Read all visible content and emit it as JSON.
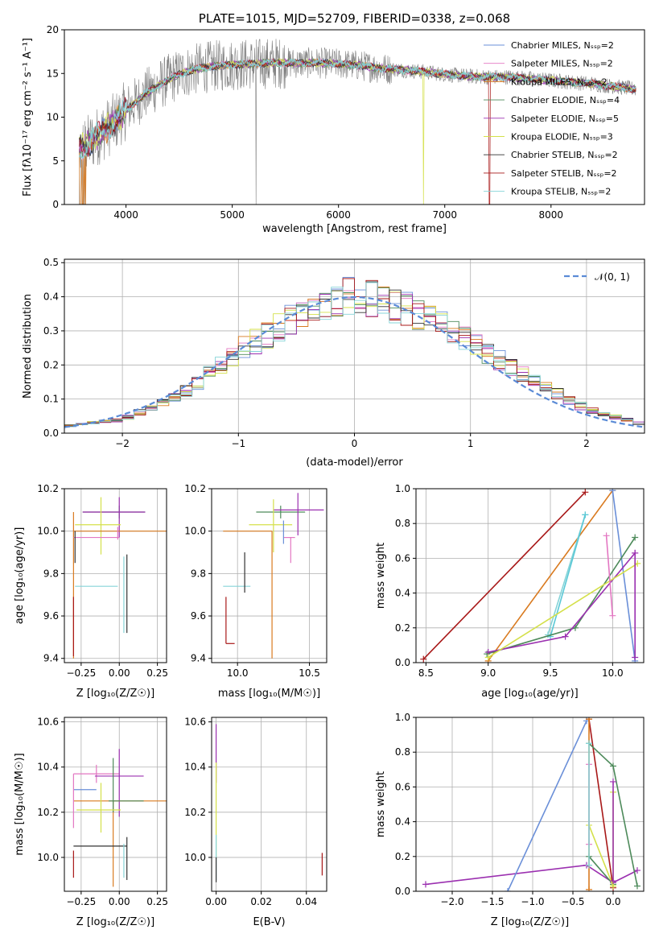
{
  "chart_data": [
    {
      "id": "spectrum",
      "type": "line",
      "title": "PLATE=1015, MJD=52709, FIBERID=0338, z=0.068",
      "xlabel": "wavelength [Angstrom, rest frame]",
      "ylabel": "Flux [fλ10⁻¹⁷ erg cm⁻² s⁻¹ A⁻¹]",
      "xlim": [
        3420,
        8880
      ],
      "ylim": [
        0,
        20
      ],
      "xticks": [
        4000,
        5000,
        6000,
        7000,
        8000
      ],
      "yticks": [
        0,
        5,
        10,
        15,
        20
      ],
      "grid": false,
      "legend_position": "top-right",
      "continuum": {
        "x": [
          3600,
          3700,
          3800,
          3900,
          4000,
          4100,
          4200,
          4300,
          4400,
          4500,
          4600,
          4700,
          4800,
          4900,
          5000,
          5200,
          5400,
          5600,
          5800,
          6000,
          6200,
          6400,
          6600,
          6800,
          7000,
          7200,
          7400,
          7600,
          7800,
          8000,
          8200,
          8400,
          8600,
          8800
        ],
        "y": [
          6.5,
          7.5,
          8.5,
          9.5,
          10.8,
          11.8,
          12.8,
          13.6,
          14.3,
          14.9,
          15.3,
          15.6,
          15.8,
          15.9,
          16.0,
          16.1,
          16.2,
          16.2,
          16.2,
          16.1,
          15.9,
          15.6,
          15.4,
          15.2,
          14.9,
          14.7,
          14.6,
          14.6,
          14.4,
          14.2,
          14.0,
          13.8,
          13.5,
          13.2
        ]
      },
      "data_range": [
        3560,
        8800
      ],
      "series": [
        {
          "name": "Chabrier MILES, N_SSP=2",
          "color": "#6a8fd8"
        },
        {
          "name": "Salpeter MILES, N_SSP=2",
          "color": "#e377c2"
        },
        {
          "name": "Kroupa MILES, N_SSP=2",
          "color": "#d97a1f"
        },
        {
          "name": "Chabrier ELODIE, N_SSP=4",
          "color": "#4d8a5a"
        },
        {
          "name": "Salpeter ELODIE, N_SSP=5",
          "color": "#9b30b0"
        },
        {
          "name": "Kroupa ELODIE, N_SSP=3",
          "color": "#d4e04a"
        },
        {
          "name": "Chabrier STELIB, N_SSP=2",
          "color": "#333333"
        },
        {
          "name": "Salpeter STELIB, N_SSP=2",
          "color": "#a81818"
        },
        {
          "name": "Kroupa STELIB, N_SSP=2",
          "color": "#86d4d8"
        }
      ]
    },
    {
      "id": "residuals",
      "type": "line",
      "xlabel": "(data-model)/error",
      "ylabel": "Normed distribution",
      "xlim": [
        -2.5,
        2.5
      ],
      "ylim": [
        0,
        0.51
      ],
      "xticks": [
        -2,
        -1,
        0,
        1,
        2
      ],
      "yticks": [
        0.0,
        0.1,
        0.2,
        0.3,
        0.4,
        0.5
      ],
      "grid": true,
      "legend_position": "top-right",
      "normal_curve": {
        "name": "𝒩(0, 1)",
        "color": "#5b8bd6",
        "mu": 0,
        "sigma": 1
      },
      "bin_width": 0.1,
      "envelope": {
        "x": [
          -2.5,
          -2.0,
          -1.5,
          -1.0,
          -0.5,
          0.0,
          0.5,
          1.0,
          1.5,
          2.0,
          2.5
        ],
        "y": [
          0.02,
          0.04,
          0.11,
          0.24,
          0.34,
          0.41,
          0.36,
          0.27,
          0.16,
          0.07,
          0.025
        ]
      },
      "series_colors": [
        "#6a8fd8",
        "#e377c2",
        "#d97a1f",
        "#4d8a5a",
        "#9b30b0",
        "#d4e04a",
        "#333333",
        "#a81818",
        "#86d4d8"
      ]
    },
    {
      "id": "age-vs-Z",
      "type": "scatter",
      "xlabel": "Z [log₁₀(Z/Z☉)]",
      "ylabel": "age  [log₁₀(age/yr)]",
      "xlim": [
        -0.36,
        0.31
      ],
      "ylim": [
        9.38,
        10.2
      ],
      "xticks": [
        -0.25,
        0.0,
        0.25
      ],
      "xtick_labels": [
        "−0.25",
        "0.00",
        "0.25"
      ],
      "yticks": [
        9.4,
        9.6,
        9.8,
        10.0,
        10.2
      ],
      "grid": true,
      "points": [
        {
          "x": 0.0,
          "y": 10.09,
          "xerr": [
            0.24,
            0.17
          ],
          "yerr": [
            0.03,
            0.03
          ],
          "color": "#4d8a5a"
        },
        {
          "x": 0.0,
          "y": 10.09,
          "xerr": [
            0.24,
            0.17
          ],
          "yerr": [
            0.12,
            0.07
          ],
          "color": "#9b30b0"
        },
        {
          "x": -0.12,
          "y": 10.03,
          "xerr": [
            0.17,
            0.13
          ],
          "yerr": [
            0.14,
            0.13
          ],
          "color": "#d4e04a"
        },
        {
          "x": -0.15,
          "y": 10.0,
          "xerr": [
            0.15,
            0.46
          ],
          "yerr": [
            0.0,
            0.0
          ],
          "color": "#d97a1f"
        },
        {
          "x": -0.3,
          "y": 9.9,
          "xerr": [
            0.0,
            0.0
          ],
          "yerr": [
            0.5,
            0.19
          ],
          "color": "#d97a1f"
        },
        {
          "x": -0.15,
          "y": 9.97,
          "xerr": [
            0.15,
            0.15
          ],
          "yerr": [
            0.0,
            0.0
          ],
          "color": "#e377c2"
        },
        {
          "x": -0.01,
          "y": 9.99,
          "xerr": [
            0.0,
            0.0
          ],
          "yerr": [
            0.03,
            0.03
          ],
          "color": "#e377c2"
        },
        {
          "x": -0.29,
          "y": 9.97,
          "xerr": [
            0.0,
            0.0
          ],
          "yerr": [
            0.12,
            0.03
          ],
          "color": "#333333"
        },
        {
          "x": -0.3,
          "y": 9.47,
          "xerr": [
            0.0,
            0.0
          ],
          "yerr": [
            0.06,
            0.22
          ],
          "color": "#a81818"
        },
        {
          "x": -0.01,
          "y": 9.74,
          "xerr": [
            0.28,
            0.0
          ],
          "yerr": [
            0.0,
            0.0
          ],
          "color": "#86d4d8"
        },
        {
          "x": 0.03,
          "y": 9.74,
          "xerr": [
            0.0,
            0.0
          ],
          "yerr": [
            0.22,
            0.14
          ],
          "color": "#86d4d8"
        },
        {
          "x": 0.05,
          "y": 9.77,
          "xerr": [
            0.0,
            0.0
          ],
          "yerr": [
            0.25,
            0.12
          ],
          "color": "#333333"
        }
      ]
    },
    {
      "id": "age-vs-mass",
      "type": "scatter",
      "xlabel": "mass [log₁₀(M/M☉)]",
      "ylabel": "",
      "xlim": [
        9.82,
        10.62
      ],
      "ylim": [
        9.38,
        10.2
      ],
      "xticks": [
        10.0,
        10.5
      ],
      "xtick_labels": [
        "10.0",
        "10.5"
      ],
      "yticks": [
        9.4,
        9.6,
        9.8,
        10.0,
        10.2
      ],
      "grid": true,
      "points": [
        {
          "x": 10.3,
          "y": 10.09,
          "xerr": [
            0.17,
            0.17
          ],
          "yerr": [
            0.03,
            0.03
          ],
          "color": "#4d8a5a"
        },
        {
          "x": 10.42,
          "y": 10.1,
          "xerr": [
            0.17,
            0.18
          ],
          "yerr": [
            0.12,
            0.08
          ],
          "color": "#9b30b0"
        },
        {
          "x": 10.25,
          "y": 10.03,
          "xerr": [
            0.17,
            0.13
          ],
          "yerr": [
            0.13,
            0.12
          ],
          "color": "#d4e04a"
        },
        {
          "x": 10.24,
          "y": 10.0,
          "xerr": [
            0.34,
            0.0
          ],
          "yerr": [
            0.6,
            0.0
          ],
          "color": "#d97a1f"
        },
        {
          "x": 10.37,
          "y": 9.97,
          "xerr": [
            0.05,
            0.03
          ],
          "yerr": [
            0.12,
            0.0
          ],
          "color": "#e377c2"
        },
        {
          "x": 10.32,
          "y": 10.02,
          "xerr": [
            0.0,
            0.0
          ],
          "yerr": [
            0.08,
            0.03
          ],
          "color": "#6a8fd8"
        },
        {
          "x": 10.02,
          "y": 9.74,
          "xerr": [
            0.12,
            0.07
          ],
          "yerr": [
            0.0,
            0.0
          ],
          "color": "#86d4d8"
        },
        {
          "x": 10.05,
          "y": 9.8,
          "xerr": [
            0.0,
            0.0
          ],
          "yerr": [
            0.09,
            0.1
          ],
          "color": "#333333"
        },
        {
          "x": 9.92,
          "y": 9.47,
          "xerr": [
            0.0,
            0.06
          ],
          "yerr": [
            0.0,
            0.22
          ],
          "color": "#a81818"
        }
      ]
    },
    {
      "id": "weight-vs-age",
      "type": "line",
      "xlabel": "age  [log₁₀(age/yr)]",
      "ylabel": "mass weight",
      "xlim": [
        8.42,
        10.25
      ],
      "ylim": [
        0,
        1.0
      ],
      "xticks": [
        8.5,
        9.0,
        9.5,
        10.0
      ],
      "xtick_labels": [
        "8.5",
        "9.0",
        "9.5",
        "10.0"
      ],
      "yticks": [
        0.0,
        0.2,
        0.4,
        0.6,
        0.8,
        1.0
      ],
      "grid": true,
      "lines": [
        {
          "color": "#a81818",
          "x": [
            8.48,
            9.78
          ],
          "y": [
            0.02,
            0.98
          ]
        },
        {
          "color": "#d97a1f",
          "x": [
            9.0,
            10.0
          ],
          "y": [
            0.01,
            0.99
          ]
        },
        {
          "color": "#6a8fd8",
          "x": [
            10.0,
            10.18
          ],
          "y": [
            0.99,
            0.01
          ]
        },
        {
          "color": "#86d4d8",
          "x": [
            9.48,
            9.78
          ],
          "y": [
            0.16,
            0.85
          ]
        },
        {
          "color": "#5ac8d6",
          "x": [
            9.5,
            9.78
          ],
          "y": [
            0.15,
            0.85
          ]
        },
        {
          "color": "#4d8a5a",
          "x": [
            8.99,
            9.7,
            10.18
          ],
          "y": [
            0.05,
            0.2,
            0.72
          ]
        },
        {
          "color": "#9b30b0",
          "x": [
            9.0,
            9.62,
            10.18
          ],
          "y": [
            0.06,
            0.15,
            0.63
          ]
        },
        {
          "color": "#d4e04a",
          "x": [
            9.0,
            10.2
          ],
          "y": [
            0.03,
            0.57
          ]
        },
        {
          "color": "#e377c2",
          "x": [
            9.95,
            10.0
          ],
          "y": [
            0.73,
            0.27
          ]
        },
        {
          "color": "#9b30b0",
          "x": [
            10.18,
            10.18
          ],
          "y": [
            0.63,
            0.03
          ]
        }
      ]
    },
    {
      "id": "mass-vs-Z",
      "type": "scatter",
      "xlabel": "Z [log₁₀(Z/Z☉)]",
      "ylabel": "mass [log₁₀(M/M☉)]",
      "xlim": [
        -0.36,
        0.31
      ],
      "ylim": [
        9.85,
        10.62
      ],
      "xticks": [
        -0.25,
        0.0,
        0.25
      ],
      "xtick_labels": [
        "−0.25",
        "0.00",
        "0.25"
      ],
      "yticks": [
        10.0,
        10.2,
        10.4,
        10.6
      ],
      "grid": true,
      "points": [
        {
          "x": -0.15,
          "y": 10.37,
          "xerr": [
            0.15,
            0.15
          ],
          "yerr": [
            0.04,
            0.04
          ],
          "color": "#e377c2"
        },
        {
          "x": 0.0,
          "y": 10.36,
          "xerr": [
            0.16,
            0.16
          ],
          "yerr": [
            0.18,
            0.12
          ],
          "color": "#9b30b0"
        },
        {
          "x": -0.15,
          "y": 10.3,
          "xerr": [
            0.15,
            0.0
          ],
          "yerr": [
            0.0,
            0.0
          ],
          "color": "#6a8fd8"
        },
        {
          "x": -0.04,
          "y": 10.25,
          "xerr": [
            0.26,
            0.36
          ],
          "yerr": [
            0.38,
            0.0
          ],
          "color": "#d97a1f"
        },
        {
          "x": 0.03,
          "y": 10.25,
          "xerr": [
            0.1,
            0.13
          ],
          "yerr": [
            0.0,
            0.0
          ],
          "color": "#4d8a5a"
        },
        {
          "x": -0.04,
          "y": 10.32,
          "xerr": [
            0.0,
            0.0
          ],
          "yerr": [
            0.12,
            0.12
          ],
          "color": "#4d8a5a"
        },
        {
          "x": -0.12,
          "y": 10.21,
          "xerr": [
            0.16,
            0.13
          ],
          "yerr": [
            0.1,
            0.12
          ],
          "color": "#d4e04a"
        },
        {
          "x": -0.13,
          "y": 10.05,
          "xerr": [
            0.17,
            0.18
          ],
          "yerr": [
            0.0,
            0.0
          ],
          "color": "#333333"
        },
        {
          "x": 0.05,
          "y": 10.05,
          "xerr": [
            0.0,
            0.0
          ],
          "yerr": [
            0.15,
            0.04
          ],
          "color": "#333333"
        },
        {
          "x": 0.03,
          "y": 10.02,
          "xerr": [
            0.0,
            0.0
          ],
          "yerr": [
            0.11,
            0.04
          ],
          "color": "#86d4d8"
        },
        {
          "x": -0.3,
          "y": 9.93,
          "xerr": [
            0.0,
            0.0
          ],
          "yerr": [
            0.02,
            0.1
          ],
          "color": "#a81818"
        },
        {
          "x": -0.3,
          "y": 10.25,
          "xerr": [
            0.0,
            0.0
          ],
          "yerr": [
            0.12,
            0.12
          ],
          "color": "#e377c2"
        }
      ]
    },
    {
      "id": "mass-vs-ebv",
      "type": "scatter",
      "xlabel": "E(B-V)",
      "ylabel": "",
      "xlim": [
        -0.002,
        0.049
      ],
      "ylim": [
        9.85,
        10.62
      ],
      "xticks": [
        0.0,
        0.02,
        0.04
      ],
      "xtick_labels": [
        "0.00",
        "0.02",
        "0.04"
      ],
      "yticks": [
        10.0,
        10.2,
        10.4,
        10.6
      ],
      "grid": true,
      "points": [
        {
          "x": 0.0,
          "y": 10.45,
          "xerr": [
            0,
            0
          ],
          "yerr": [
            0.12,
            0.14
          ],
          "color": "#9b30b0"
        },
        {
          "x": 0.0,
          "y": 10.25,
          "xerr": [
            0,
            0
          ],
          "yerr": [
            0.25,
            0.17
          ],
          "color": "#d4e04a"
        },
        {
          "x": 0.0,
          "y": 10.0,
          "xerr": [
            0,
            0
          ],
          "yerr": [
            0.1,
            0.1
          ],
          "color": "#86d4d8"
        },
        {
          "x": 0.0,
          "y": 9.95,
          "xerr": [
            0,
            0
          ],
          "yerr": [
            0.06,
            0.05
          ],
          "color": "#333333"
        },
        {
          "x": 0.047,
          "y": 9.97,
          "xerr": [
            0,
            0
          ],
          "yerr": [
            0.05,
            0.05
          ],
          "color": "#a81818"
        }
      ]
    },
    {
      "id": "weight-vs-Z",
      "type": "line",
      "xlabel": "Z [log₁₀(Z/Z☉)]",
      "ylabel": "mass weight",
      "xlim": [
        -2.45,
        0.38
      ],
      "ylim": [
        0,
        1.0
      ],
      "xticks": [
        -2.0,
        -1.5,
        -1.0,
        -0.5,
        0.0
      ],
      "xtick_labels": [
        "−2.0",
        "−1.5",
        "−1.0",
        "−0.5",
        "0.0"
      ],
      "yticks": [
        0.0,
        0.2,
        0.4,
        0.6,
        0.8,
        1.0
      ],
      "grid": true,
      "lines": [
        {
          "color": "#9b30b0",
          "x": [
            -2.33,
            -0.33,
            0.0,
            0.3
          ],
          "y": [
            0.04,
            0.15,
            0.05,
            0.12
          ]
        },
        {
          "color": "#6a8fd8",
          "x": [
            -1.31,
            -0.33
          ],
          "y": [
            0.0,
            0.98
          ]
        },
        {
          "color": "#a81818",
          "x": [
            -0.3,
            0.0
          ],
          "y": [
            0.99,
            0.02
          ]
        },
        {
          "color": "#d97a1f",
          "x": [
            -0.3,
            -0.3
          ],
          "y": [
            0.99,
            0.01
          ]
        },
        {
          "color": "#4d8a5a",
          "x": [
            -0.3,
            0.0,
            0.3
          ],
          "y": [
            0.85,
            0.72,
            0.03
          ]
        },
        {
          "color": "#4d8a5a",
          "x": [
            -0.3,
            0.0
          ],
          "y": [
            0.2,
            0.04
          ]
        },
        {
          "color": "#d4e04a",
          "x": [
            -0.3,
            0.0
          ],
          "y": [
            0.38,
            0.03
          ]
        },
        {
          "color": "#d4e04a",
          "x": [
            0.0,
            0.0
          ],
          "y": [
            0.57,
            0.03
          ]
        },
        {
          "color": "#e377c2",
          "x": [
            -0.3,
            -0.3
          ],
          "y": [
            0.73,
            0.27
          ]
        },
        {
          "color": "#86d4d8",
          "x": [
            -0.3,
            -0.3
          ],
          "y": [
            0.85,
            0.15
          ]
        },
        {
          "color": "#9b30b0",
          "x": [
            0.0,
            0.0
          ],
          "y": [
            0.63,
            0.06
          ]
        }
      ]
    }
  ]
}
